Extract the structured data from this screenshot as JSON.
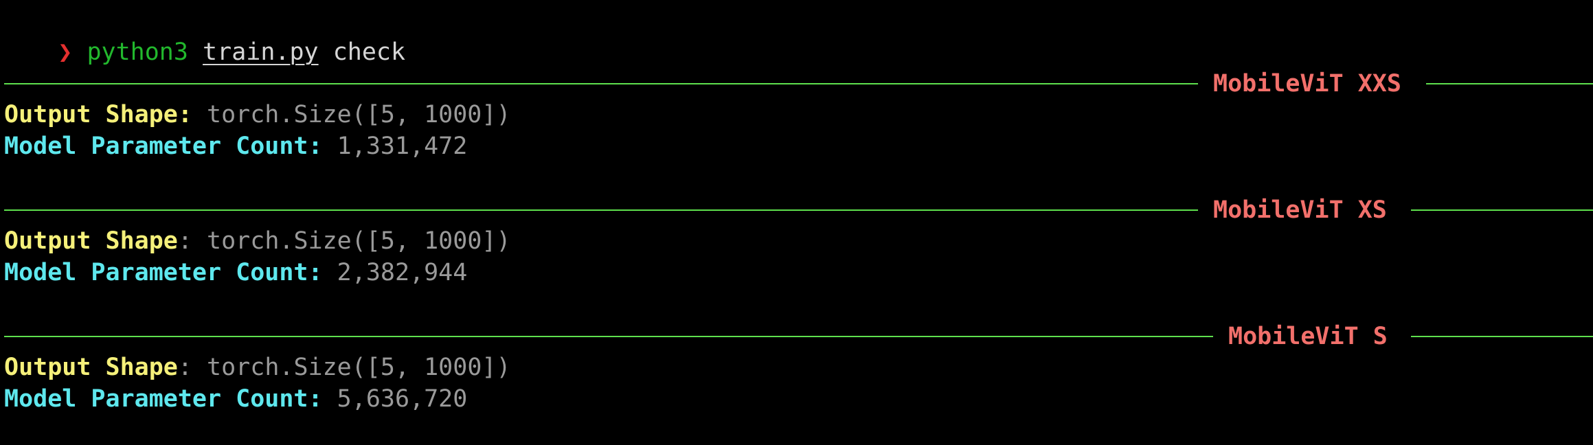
{
  "prompt": {
    "symbol": "❯",
    "command": "python3",
    "file": "train.py",
    "arg": "check"
  },
  "sections": [
    {
      "title": "MobileViT XXS",
      "output_label": "Output Shape:",
      "output_value": "torch.Size([5, 1000])",
      "param_label": "Model Parameter Count:",
      "param_value": "1,331,472"
    },
    {
      "title": "MobileViT XS",
      "output_label": "Output Shape",
      "output_colon": ":",
      "output_value": "torch.Size([5, 1000])",
      "param_label": "Model Parameter Count:",
      "param_value": "2,382,944"
    },
    {
      "title": "MobileViT S",
      "output_label": "Output Shape",
      "output_colon": ":",
      "output_value": "torch.Size([5, 1000])",
      "param_label": "Model Parameter Count:",
      "param_value": "5,636,720"
    }
  ],
  "colors": {
    "background": "#000000",
    "prompt_symbol": "#e5302f",
    "command": "#22b82d",
    "rule": "#5ee04d",
    "section_title": "#f2706b",
    "label_yellow": "#f5f07a",
    "label_cyan": "#5ee8ee",
    "value": "#9a9a9a"
  }
}
